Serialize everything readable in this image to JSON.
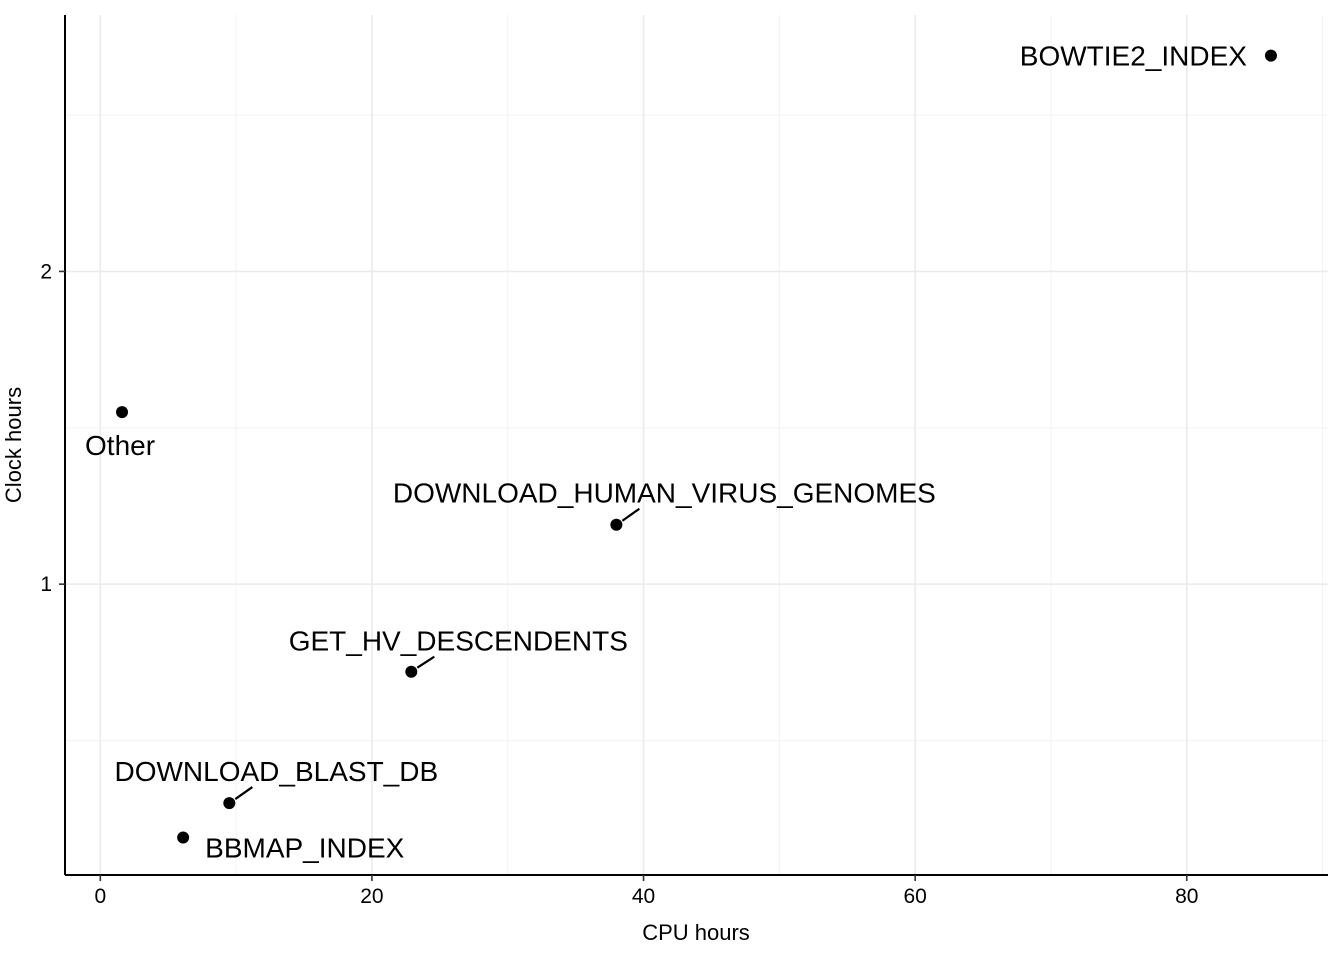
{
  "chart_data": {
    "type": "scatter",
    "title": "",
    "xlabel": "CPU hours",
    "ylabel": "Clock hours",
    "xlim": [
      -2.6,
      90.4
    ],
    "ylim": [
      0.07,
      2.82
    ],
    "x_ticks": [
      0,
      20,
      40,
      60,
      80
    ],
    "y_ticks": [
      1,
      2
    ],
    "x_minor_ticks": [
      10,
      30,
      50,
      70,
      90
    ],
    "y_minor_ticks": [
      0.5,
      1.5,
      2.5
    ],
    "x_tick_labels": [
      "0",
      "20",
      "40",
      "60",
      "80"
    ],
    "y_tick_labels": [
      "1",
      "2"
    ],
    "grid": true,
    "legend": "none",
    "point_color": "#000000",
    "points": [
      {
        "label": "BOWTIE2_INDEX",
        "x": 86.2,
        "y": 2.69
      },
      {
        "label": "Other",
        "x": 1.6,
        "y": 1.55
      },
      {
        "label": "DOWNLOAD_HUMAN_VIRUS_GENOMES",
        "x": 38.0,
        "y": 1.19
      },
      {
        "label": "GET_HV_DESCENDENTS",
        "x": 22.9,
        "y": 0.72
      },
      {
        "label": "DOWNLOAD_BLAST_DB",
        "x": 9.5,
        "y": 0.3
      },
      {
        "label": "BBMAP_INDEX",
        "x": 6.1,
        "y": 0.19
      }
    ]
  }
}
